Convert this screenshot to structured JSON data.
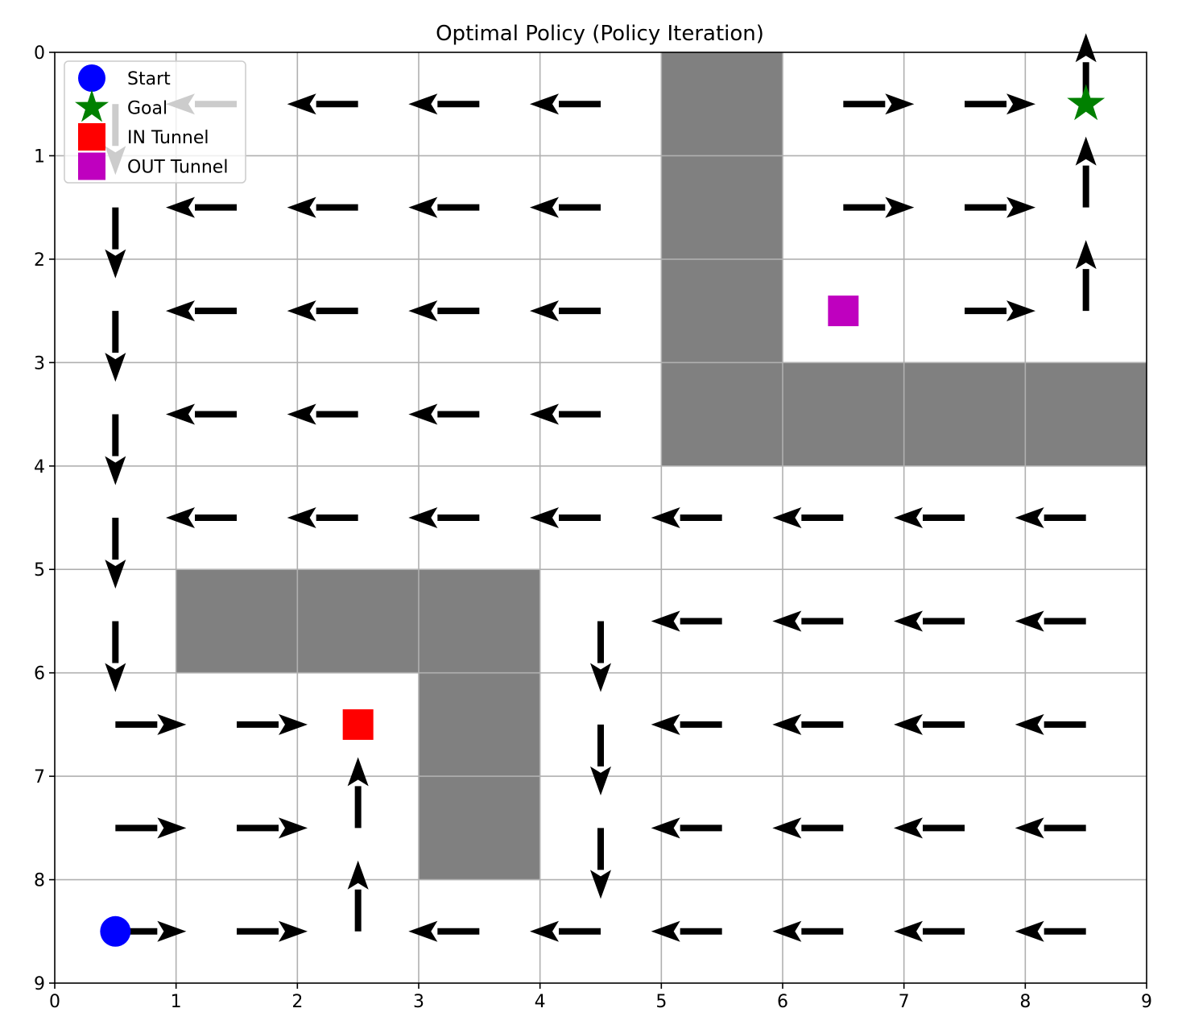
{
  "chart_data": {
    "type": "grid-policy",
    "title": "Optimal Policy (Policy Iteration)",
    "xlabel": "",
    "ylabel": "",
    "xlim": [
      0,
      9
    ],
    "ylim": [
      9,
      0
    ],
    "x_ticks": [
      "0",
      "1",
      "2",
      "3",
      "4",
      "5",
      "6",
      "7",
      "8",
      "9"
    ],
    "y_ticks": [
      "0",
      "1",
      "2",
      "3",
      "4",
      "5",
      "6",
      "7",
      "8",
      "9"
    ],
    "grid": true,
    "rows": 9,
    "cols": 9,
    "walls": [
      [
        0,
        5
      ],
      [
        1,
        5
      ],
      [
        2,
        5
      ],
      [
        3,
        5
      ],
      [
        3,
        6
      ],
      [
        3,
        7
      ],
      [
        3,
        8
      ],
      [
        5,
        1
      ],
      [
        5,
        2
      ],
      [
        5,
        3
      ],
      [
        6,
        3
      ],
      [
        7,
        3
      ]
    ],
    "policy": [
      [
        "D",
        "L",
        "L",
        "L",
        "L",
        "",
        "R",
        "R",
        "U"
      ],
      [
        "D",
        "L",
        "L",
        "L",
        "L",
        "",
        "R",
        "R",
        "U"
      ],
      [
        "D",
        "L",
        "L",
        "L",
        "L",
        "",
        "",
        "R",
        "U"
      ],
      [
        "D",
        "L",
        "L",
        "L",
        "L",
        "",
        "",
        "",
        ""
      ],
      [
        "D",
        "L",
        "L",
        "L",
        "L",
        "L",
        "L",
        "L",
        "L"
      ],
      [
        "D",
        "",
        "",
        "",
        "D",
        "L",
        "L",
        "L",
        "L"
      ],
      [
        "R",
        "R",
        "",
        "",
        "D",
        "L",
        "L",
        "L",
        "L"
      ],
      [
        "R",
        "R",
        "U",
        "",
        "D",
        "L",
        "L",
        "L",
        "L"
      ],
      [
        "R",
        "R",
        "U",
        "L",
        "L",
        "L",
        "L",
        "L",
        "L"
      ]
    ],
    "start": {
      "row": 8,
      "col": 0
    },
    "goal": {
      "row": 0,
      "col": 8
    },
    "in_tunnel": {
      "row": 6,
      "col": 2
    },
    "out_tunnel": {
      "row": 2,
      "col": 6
    },
    "legend": {
      "position": "top-left",
      "entries": [
        {
          "key": "start",
          "label": "Start",
          "marker": "circle",
          "color": "#0000ff"
        },
        {
          "key": "goal",
          "label": "Goal",
          "marker": "star",
          "color": "#008000"
        },
        {
          "key": "in",
          "label": "IN Tunnel",
          "marker": "square",
          "color": "#ff0000"
        },
        {
          "key": "out",
          "label": "OUT Tunnel",
          "marker": "square",
          "color": "#bf00bf"
        }
      ]
    },
    "colors": {
      "wall": "#808080",
      "grid": "#b0b0b0",
      "arrow": "#000000"
    }
  }
}
